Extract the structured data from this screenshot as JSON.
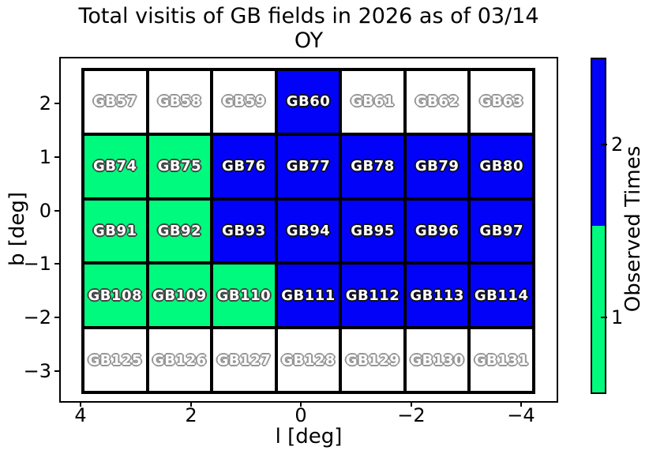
{
  "title": {
    "line1": "Total visitis of GB fields in 2026 as of 03/14",
    "line2": "OY"
  },
  "axes": {
    "xlabel": "l [deg]",
    "ylabel": "b [deg]",
    "x_ticks": [
      "4",
      "2",
      "0",
      "−2",
      "−4"
    ],
    "y_ticks": [
      "2",
      "1",
      "0",
      "−1",
      "−2",
      "−3"
    ]
  },
  "colorbar": {
    "label": "Observed Times",
    "ticks": [
      {
        "label": "2",
        "frac": 0.258
      },
      {
        "label": "1",
        "frac": 0.772
      }
    ]
  },
  "colors": {
    "unobserved": "#ffffff",
    "observed_once": "#00fa7d",
    "observed_twice": "#0202f8"
  },
  "chart_data": {
    "type": "heatmap",
    "title": "Total visitis of GB fields in 2026 as of 03/14 OY",
    "xlabel": "l [deg]",
    "ylabel": "b [deg]",
    "xticks": [
      4,
      2,
      0,
      -2,
      -4
    ],
    "yticks": [
      2,
      1,
      0,
      -1,
      -2,
      -3
    ],
    "x_axis_inverted": true,
    "grid_shape": {
      "rows": 5,
      "cols": 7
    },
    "colorbar_label": "Observed Times",
    "value_colors": {
      "0": "#ffffff",
      "1": "#00fa7d",
      "2": "#0202f8"
    },
    "rows": [
      {
        "labels": [
          "GB57",
          "GB58",
          "GB59",
          "GB60",
          "GB61",
          "GB62",
          "GB63"
        ],
        "observed_times": [
          0,
          0,
          0,
          2,
          0,
          0,
          0
        ]
      },
      {
        "labels": [
          "GB74",
          "GB75",
          "GB76",
          "GB77",
          "GB78",
          "GB79",
          "GB80"
        ],
        "observed_times": [
          1,
          1,
          2,
          2,
          2,
          2,
          2
        ]
      },
      {
        "labels": [
          "GB91",
          "GB92",
          "GB93",
          "GB94",
          "GB95",
          "GB96",
          "GB97"
        ],
        "observed_times": [
          1,
          1,
          2,
          2,
          2,
          2,
          2
        ]
      },
      {
        "labels": [
          "GB108",
          "GB109",
          "GB110",
          "GB111",
          "GB112",
          "GB113",
          "GB114"
        ],
        "observed_times": [
          1,
          1,
          1,
          2,
          2,
          2,
          2
        ]
      },
      {
        "labels": [
          "GB125",
          "GB126",
          "GB127",
          "GB128",
          "GB129",
          "GB130",
          "GB131"
        ],
        "observed_times": [
          0,
          0,
          0,
          0,
          0,
          0,
          0
        ]
      }
    ]
  }
}
